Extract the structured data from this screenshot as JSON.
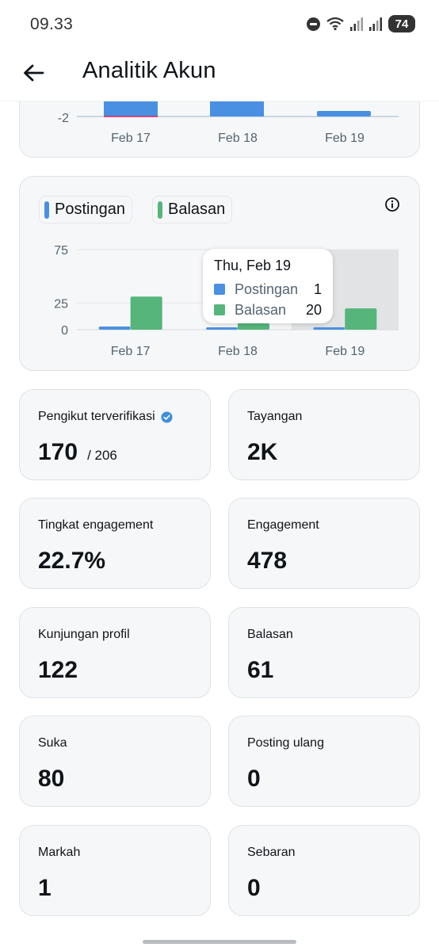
{
  "status_bar": {
    "time": "09.33",
    "battery": "74"
  },
  "header": {
    "title": "Analitik Akun"
  },
  "colors": {
    "postingan": "#4a90e2",
    "balasan": "#55b57a",
    "verified": "#3f8fd8"
  },
  "top_chart_partial": {
    "y_tick": "-2",
    "categories": [
      "Feb 17",
      "Feb 18",
      "Feb 19"
    ]
  },
  "chart_data": {
    "type": "bar",
    "categories": [
      "Feb 17",
      "Feb 18",
      "Feb 19"
    ],
    "series": [
      {
        "name": "Postingan",
        "values": [
          3,
          1,
          1
        ]
      },
      {
        "name": "Balasan",
        "values": [
          31,
          6,
          20
        ]
      }
    ],
    "y_ticks": [
      0,
      25,
      75
    ],
    "ylim": [
      0,
      75
    ],
    "legend": [
      "Postingan",
      "Balasan"
    ],
    "highlighted_category": "Feb 19",
    "tooltip": {
      "title": "Thu, Feb 19",
      "rows": [
        {
          "label": "Postingan",
          "value": "1"
        },
        {
          "label": "Balasan",
          "value": "20"
        }
      ]
    }
  },
  "metrics": [
    {
      "label": "Pengikut terverifikasi",
      "value": "170",
      "sub": "/ 206",
      "verified": true
    },
    {
      "label": "Tayangan",
      "value": "2K"
    },
    {
      "label": "Tingkat engagement",
      "value": "22.7%"
    },
    {
      "label": "Engagement",
      "value": "478"
    },
    {
      "label": "Kunjungan profil",
      "value": "122"
    },
    {
      "label": "Balasan",
      "value": "61"
    },
    {
      "label": "Suka",
      "value": "80"
    },
    {
      "label": "Posting ulang",
      "value": "0"
    },
    {
      "label": "Markah",
      "value": "1"
    },
    {
      "label": "Sebaran",
      "value": "0"
    }
  ]
}
